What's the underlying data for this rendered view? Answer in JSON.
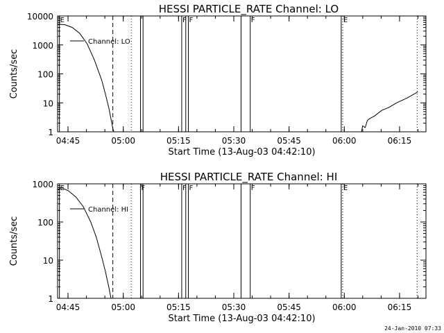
{
  "footer_text": "24-Jan-2010 07:33",
  "chart_data": [
    {
      "type": "line",
      "title": "HESSI PARTICLE_RATE Channel: LO",
      "xlabel": "Start Time (13-Aug-03 04:42:10)",
      "ylabel": "Counts/sec",
      "yscale": "log",
      "x_unit": "minutes since 04:42:10",
      "xlim": [
        0,
        100
      ],
      "ylim": [
        1,
        10000
      ],
      "x_ticks": [
        {
          "t": 2.8333,
          "label": "04:45"
        },
        {
          "t": 17.8333,
          "label": "05:00"
        },
        {
          "t": 32.8333,
          "label": "05:15"
        },
        {
          "t": 47.8333,
          "label": "05:30"
        },
        {
          "t": 62.8333,
          "label": "05:45"
        },
        {
          "t": 77.8333,
          "label": "06:00"
        },
        {
          "t": 92.8333,
          "label": "06:15"
        }
      ],
      "y_ticks": [
        {
          "v": 1,
          "label": "1"
        },
        {
          "v": 10,
          "label": "10"
        },
        {
          "v": 100,
          "label": "100"
        },
        {
          "v": 1000,
          "label": "1000"
        },
        {
          "v": 10000,
          "label": "10000"
        }
      ],
      "legend": {
        "label": "Channel: LO",
        "placement": "top-left"
      },
      "series": [
        {
          "name": "Channel: LO",
          "segments": [
            [
              [
                0,
                5200
              ],
              [
                2,
                5000
              ],
              [
                4,
                4000
              ],
              [
                6,
                2500
              ],
              [
                8,
                1100
              ],
              [
                10,
                300
              ],
              [
                12,
                60
              ],
              [
                13,
                20
              ],
              [
                14,
                6
              ],
              [
                15,
                1.3
              ],
              [
                15.3,
                1
              ]
            ],
            [
              [
                82.5,
                1
              ],
              [
                82.8,
                1.6
              ],
              [
                83.5,
                1.4
              ],
              [
                84.1,
                2.5
              ],
              [
                85,
                3
              ],
              [
                86,
                3.5
              ],
              [
                88,
                5.5
              ],
              [
                90,
                7
              ],
              [
                92,
                10
              ],
              [
                95,
                15
              ],
              [
                97.8,
                24
              ]
            ]
          ]
        }
      ],
      "events": [
        {
          "t": 0.5,
          "style": "solid",
          "label": "E"
        },
        {
          "t": 15.0,
          "style": "dashed",
          "label": ""
        },
        {
          "t": 20.0,
          "style": "dotted",
          "label": ""
        },
        {
          "t": 22.5,
          "style": "solid",
          "label": ""
        },
        {
          "t": 23.2,
          "style": "solid",
          "label": ""
        },
        {
          "t": 33.7,
          "style": "solid",
          "label": "F"
        },
        {
          "t": 34.8,
          "style": "solid",
          "label": ""
        },
        {
          "t": 35.5,
          "style": "solid",
          "label": "F"
        },
        {
          "t": 49.8,
          "style": "solid",
          "label": ""
        },
        {
          "t": 52.3,
          "style": "solid",
          "label": "F"
        },
        {
          "t": 77.0,
          "style": "solid",
          "label": ""
        },
        {
          "t": 77.4,
          "style": "dotted",
          "label": "E"
        },
        {
          "t": 97.6,
          "style": "dotted",
          "label": ""
        }
      ]
    },
    {
      "type": "line",
      "title": "HESSI PARTICLE_RATE Channel: HI",
      "xlabel": "Start Time (13-Aug-03 04:42:10)",
      "ylabel": "Counts/sec",
      "yscale": "log",
      "x_unit": "minutes since 04:42:10",
      "xlim": [
        0,
        100
      ],
      "ylim": [
        1,
        1000
      ],
      "x_ticks": [
        {
          "t": 2.8333,
          "label": "04:45"
        },
        {
          "t": 17.8333,
          "label": "05:00"
        },
        {
          "t": 32.8333,
          "label": "05:15"
        },
        {
          "t": 47.8333,
          "label": "05:30"
        },
        {
          "t": 62.8333,
          "label": "05:45"
        },
        {
          "t": 77.8333,
          "label": "06:00"
        },
        {
          "t": 92.8333,
          "label": "06:15"
        }
      ],
      "y_ticks": [
        {
          "v": 1,
          "label": "1"
        },
        {
          "v": 10,
          "label": "10"
        },
        {
          "v": 100,
          "label": "100"
        },
        {
          "v": 1000,
          "label": "1000"
        }
      ],
      "legend": {
        "label": "Channel: HI",
        "placement": "top-left"
      },
      "series": [
        {
          "name": "Channel: HI",
          "segments": [
            [
              [
                0,
                700
              ],
              [
                1,
                800
              ],
              [
                3,
                650
              ],
              [
                5,
                450
              ],
              [
                7,
                250
              ],
              [
                9,
                100
              ],
              [
                10.5,
                40
              ],
              [
                12,
                12
              ],
              [
                13,
                5
              ],
              [
                14,
                1.8
              ],
              [
                14.5,
                1
              ]
            ]
          ]
        }
      ],
      "events": [
        {
          "t": 0.5,
          "style": "solid",
          "label": "E"
        },
        {
          "t": 15.0,
          "style": "dashed",
          "label": ""
        },
        {
          "t": 20.0,
          "style": "dotted",
          "label": ""
        },
        {
          "t": 22.5,
          "style": "solid",
          "label": "F"
        },
        {
          "t": 23.2,
          "style": "solid",
          "label": ""
        },
        {
          "t": 33.7,
          "style": "solid",
          "label": "F"
        },
        {
          "t": 34.8,
          "style": "solid",
          "label": ""
        },
        {
          "t": 35.5,
          "style": "solid",
          "label": "F"
        },
        {
          "t": 49.8,
          "style": "solid",
          "label": ""
        },
        {
          "t": 52.3,
          "style": "solid",
          "label": "F"
        },
        {
          "t": 77.0,
          "style": "solid",
          "label": ""
        },
        {
          "t": 77.4,
          "style": "dotted",
          "label": "E"
        },
        {
          "t": 97.6,
          "style": "dotted",
          "label": ""
        }
      ]
    }
  ]
}
